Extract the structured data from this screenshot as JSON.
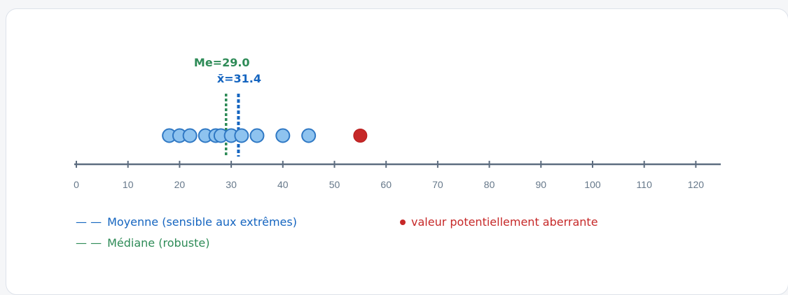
{
  "chart_data": {
    "type": "scatter",
    "xlim": [
      0,
      125
    ],
    "ticks": [
      0,
      10,
      20,
      30,
      40,
      50,
      60,
      70,
      80,
      90,
      100,
      110,
      120
    ],
    "points": [
      18,
      20,
      22,
      25,
      27,
      28,
      30,
      32,
      35,
      40,
      45
    ],
    "outliers": [
      55
    ],
    "median": {
      "value": 29.0,
      "label": "Me=29.0"
    },
    "mean": {
      "value": 31.4,
      "label": "x̄=31.4"
    },
    "colors": {
      "point_fill": "#8ec3ef",
      "point_stroke": "#2f78c4",
      "outlier": "#c62828",
      "mean": "#1565c0",
      "median": "#2e8b57",
      "axis": "#5d6d80"
    }
  },
  "legend": {
    "mean_dash": "— —",
    "mean_label": "Moyenne (sensible aux extrêmes)",
    "median_dash": "— —",
    "median_label": "Médiane (robuste)",
    "outlier_label": "valeur potentiellement aberrante"
  }
}
